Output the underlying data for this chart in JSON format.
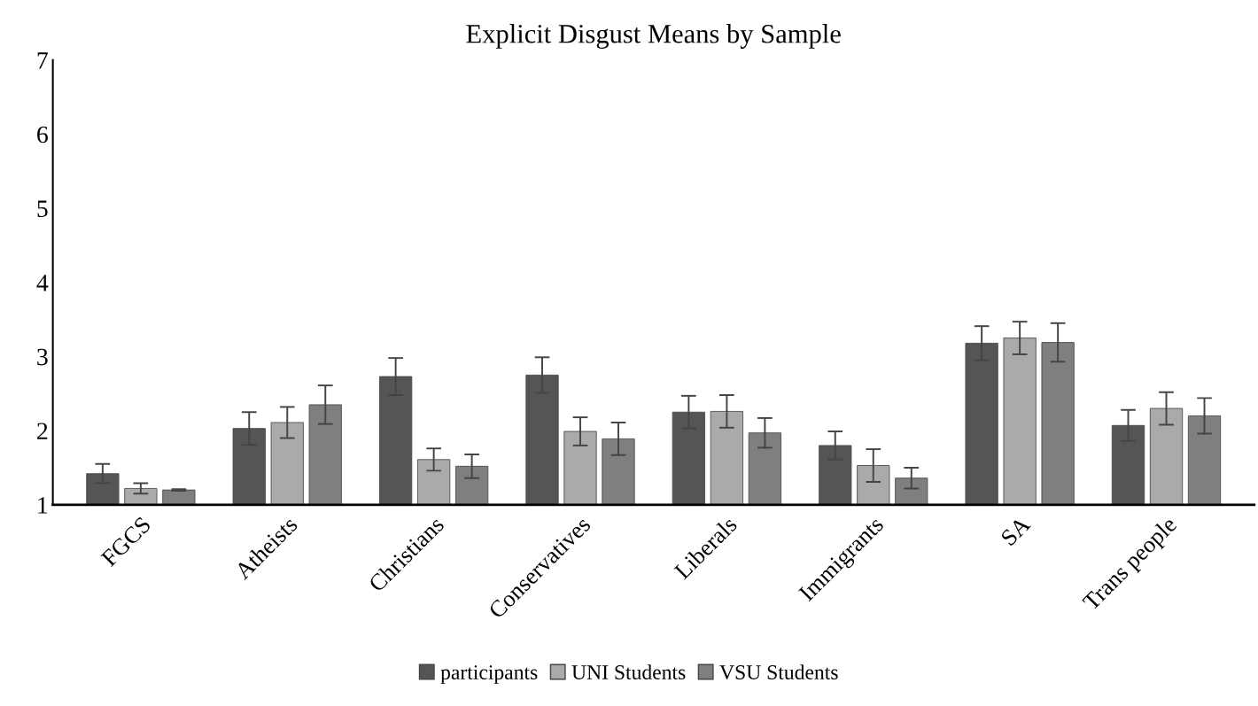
{
  "chart_data": {
    "type": "bar",
    "title": "Explicit Disgust Means by Sample",
    "categories": [
      "FGCS",
      "Atheists",
      "Christians",
      "Conservatives",
      "Liberals",
      "Immigrants",
      "SA",
      "Trans people"
    ],
    "series": [
      {
        "name": "participants",
        "color": "#555555",
        "values": [
          1.42,
          2.03,
          2.73,
          2.75,
          2.25,
          1.8,
          3.18,
          2.07
        ],
        "errors": [
          0.13,
          0.22,
          0.25,
          0.24,
          0.22,
          0.19,
          0.23,
          0.21
        ]
      },
      {
        "name": "UNI Students",
        "color": "#aaaaaa",
        "values": [
          1.22,
          2.11,
          1.61,
          1.99,
          2.26,
          1.53,
          3.25,
          2.3
        ],
        "errors": [
          0.07,
          0.21,
          0.15,
          0.19,
          0.22,
          0.22,
          0.22,
          0.22
        ]
      },
      {
        "name": "VSU Students",
        "color": "#7f7f7f",
        "values": [
          1.2,
          2.35,
          1.52,
          1.89,
          1.97,
          1.36,
          3.19,
          2.2
        ],
        "errors": [
          0.01,
          0.26,
          0.16,
          0.22,
          0.2,
          0.14,
          0.26,
          0.24
        ]
      }
    ],
    "ylim": [
      1,
      7
    ],
    "yticks": [
      1,
      2,
      3,
      4,
      5,
      6,
      7
    ],
    "grid": false,
    "legend": "bottom"
  }
}
